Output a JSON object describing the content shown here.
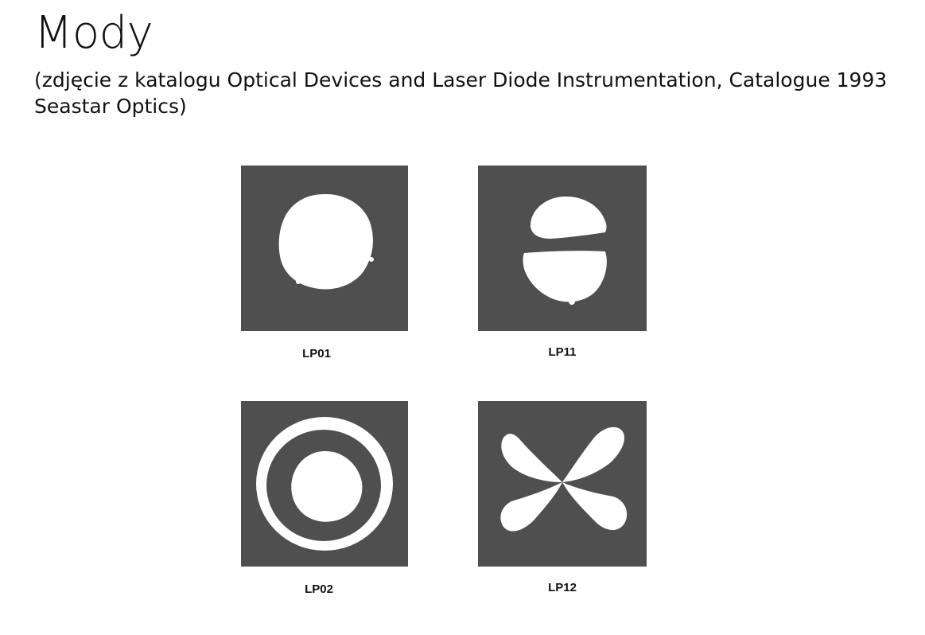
{
  "slide": {
    "title": "Mody",
    "subtitle": "(zdjęcie z katalogu Optical Devices and Laser Diode Instrumentation, Catalogue 1993 Seastar Optics)"
  },
  "figure": {
    "panel_color": "#4f4f4f",
    "spot_color": "#ffffff",
    "modes": [
      {
        "label": "LP01",
        "pattern": "single-spot"
      },
      {
        "label": "LP11",
        "pattern": "two-lobes-horizontal-split"
      },
      {
        "label": "LP02",
        "pattern": "center-spot-with-ring"
      },
      {
        "label": "LP12",
        "pattern": "four-lobes"
      }
    ]
  }
}
